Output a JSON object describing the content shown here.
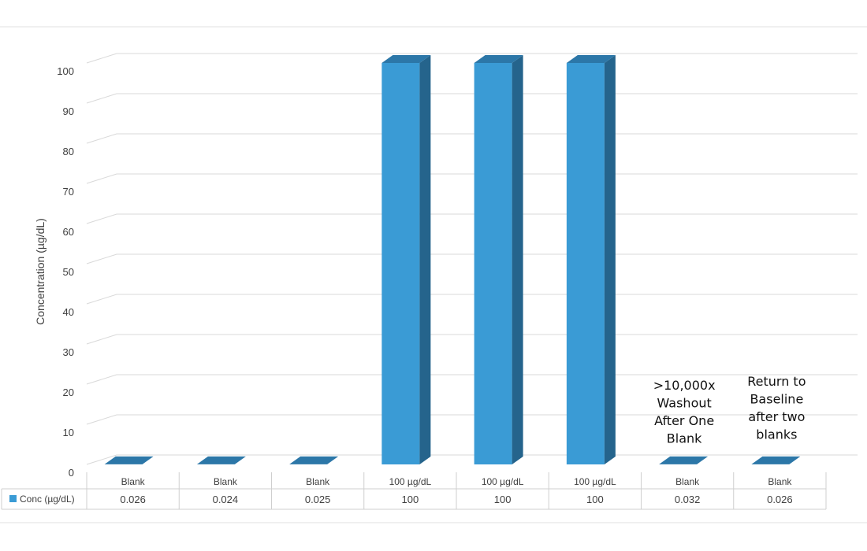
{
  "chart_data": {
    "type": "bar",
    "title": "",
    "xlabel": "",
    "ylabel": "Concentration (µg/dL)",
    "ylim": [
      0,
      100
    ],
    "yticks": [
      0,
      10,
      20,
      30,
      40,
      50,
      60,
      70,
      80,
      90,
      100
    ],
    "categories": [
      "Blank",
      "Blank",
      "Blank",
      "100 µg/dL",
      "100 µg/dL",
      "100 µg/dL",
      "Blank",
      "Blank"
    ],
    "series": [
      {
        "name": "Conc (µg/dL)",
        "values": [
          0.026,
          0.024,
          0.025,
          100,
          100,
          100,
          0.032,
          0.026
        ],
        "value_labels": [
          "0.026",
          "0.024",
          "0.025",
          "100",
          "100",
          "100",
          "0.032",
          "0.026"
        ]
      }
    ],
    "bar_style": "3d-column",
    "grid": true,
    "legend": "data-table",
    "annotations": [
      {
        "category_index": 6,
        "lines": [
          ">10,000x",
          "Washout",
          "After One",
          "Blank"
        ]
      },
      {
        "category_index": 7,
        "lines": [
          "Return to",
          "Baseline",
          "after two",
          "blanks"
        ]
      }
    ],
    "colors": {
      "bar_front": "#3a9bd5",
      "bar_side": "#25648c",
      "bar_top": "#2c77a8",
      "grid": "#d9d9d9",
      "text": "#404040"
    }
  }
}
